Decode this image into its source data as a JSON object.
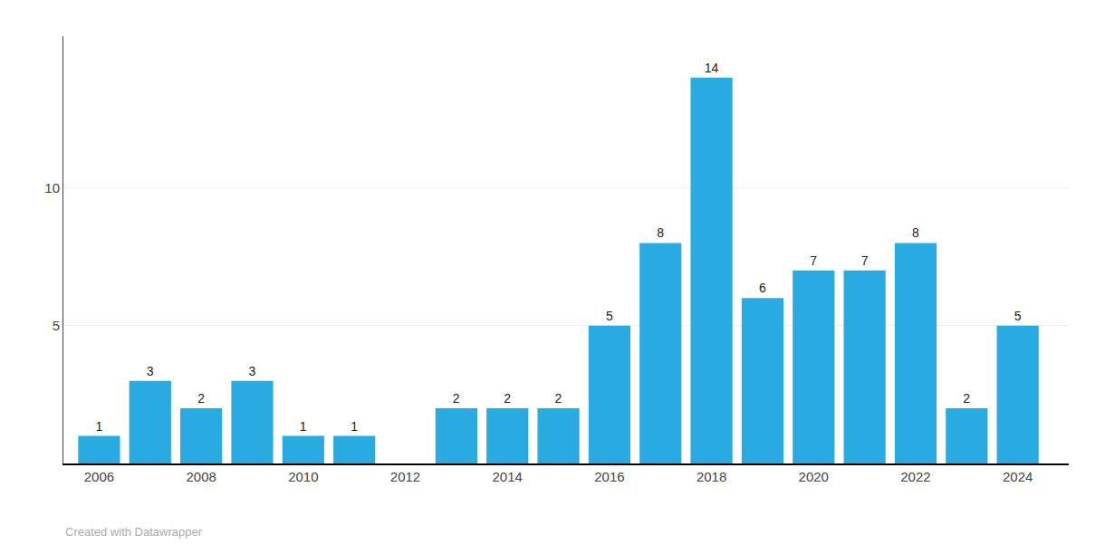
{
  "chart_data": {
    "type": "bar",
    "x": [
      2006,
      2007,
      2008,
      2009,
      2010,
      2011,
      2012,
      2013,
      2014,
      2015,
      2016,
      2017,
      2018,
      2019,
      2020,
      2021,
      2022,
      2023,
      2024
    ],
    "values": [
      1,
      3,
      2,
      3,
      1,
      1,
      0,
      2,
      2,
      2,
      5,
      8,
      14,
      6,
      7,
      7,
      8,
      2,
      5
    ],
    "value_labels": [
      "1",
      "3",
      "2",
      "3",
      "1",
      "1",
      null,
      "2",
      "2",
      "2",
      "5",
      "8",
      "14",
      "6",
      "7",
      "7",
      "8",
      "2",
      "5"
    ],
    "data_labels": true,
    "color": "#29abe2",
    "xlim": [
      2005.3,
      2025.0
    ],
    "xticks": [
      2006,
      2008,
      2010,
      2012,
      2014,
      2016,
      2018,
      2020,
      2022,
      2024
    ],
    "ylim": [
      0,
      15.5
    ],
    "yticks": [
      5,
      10
    ],
    "grid": true,
    "annotations": [
      "Created with Datawrapper"
    ]
  }
}
